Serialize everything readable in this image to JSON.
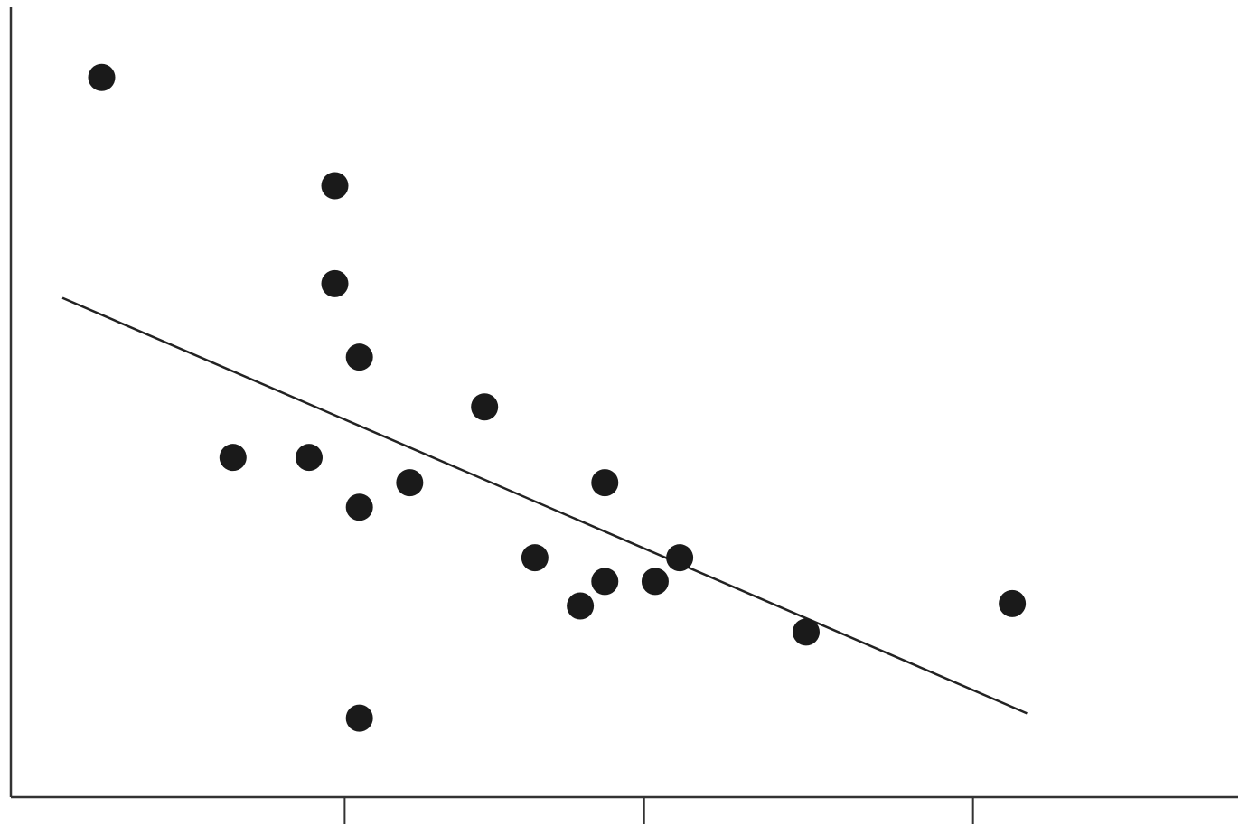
{
  "chart_data": {
    "type": "scatter",
    "title": "",
    "xlabel": "",
    "ylabel": "",
    "grid": false,
    "legend": "none",
    "xlim": [
      0,
      1
    ],
    "ylim": [
      0,
      1
    ],
    "x_ticks": [
      0.272,
      0.516,
      0.784
    ],
    "points": [
      {
        "x": 0.074,
        "y": 0.911
      },
      {
        "x": 0.264,
        "y": 0.774
      },
      {
        "x": 0.264,
        "y": 0.65
      },
      {
        "x": 0.284,
        "y": 0.557
      },
      {
        "x": 0.386,
        "y": 0.494
      },
      {
        "x": 0.181,
        "y": 0.43
      },
      {
        "x": 0.243,
        "y": 0.43
      },
      {
        "x": 0.325,
        "y": 0.398
      },
      {
        "x": 0.284,
        "y": 0.367
      },
      {
        "x": 0.484,
        "y": 0.398
      },
      {
        "x": 0.427,
        "y": 0.303
      },
      {
        "x": 0.545,
        "y": 0.303
      },
      {
        "x": 0.484,
        "y": 0.273
      },
      {
        "x": 0.525,
        "y": 0.273
      },
      {
        "x": 0.464,
        "y": 0.242
      },
      {
        "x": 0.648,
        "y": 0.209
      },
      {
        "x": 0.816,
        "y": 0.245
      },
      {
        "x": 0.284,
        "y": 0.1
      }
    ],
    "trendline": {
      "x1": 0.042,
      "y1": 0.632,
      "x2": 0.828,
      "y2": 0.106
    },
    "colors": {
      "point": "#1a1a1a",
      "line": "#222222",
      "axis": "#333333"
    }
  }
}
